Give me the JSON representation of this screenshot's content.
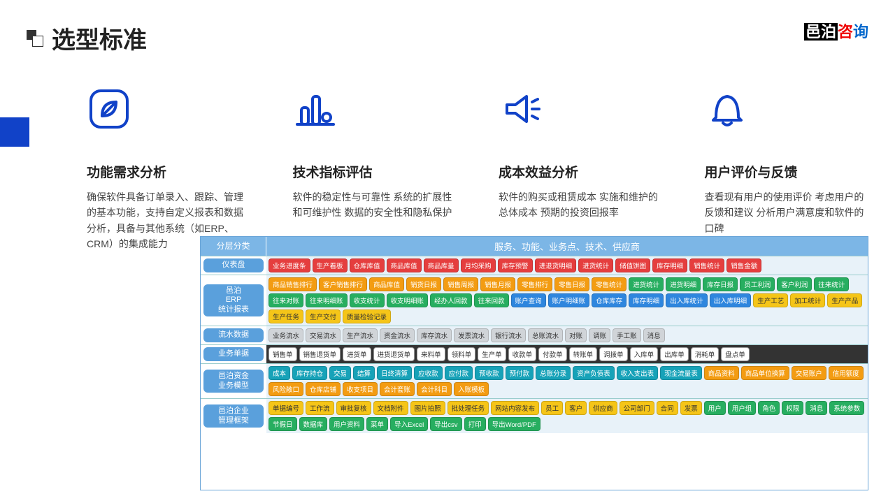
{
  "title": "选型标准",
  "logo": {
    "p1": "邑泊",
    "p2": "咨",
    "p3": "询"
  },
  "cols": [
    {
      "hd": "功能需求分析",
      "bd": "确保软件具备订单录入、跟踪、管理的基本功能，支持自定义报表和数据分析，具备与其他系统（如ERP、CRM）的集成能力"
    },
    {
      "hd": "技术指标评估",
      "bd": "软件的稳定性与可靠性\n系统的扩展性和可维护性\n数据的安全性和隐私保护"
    },
    {
      "hd": "成本效益分析",
      "bd": "软件的购买或租赁成本\n实施和维护的总体成本\n预期的投资回报率"
    },
    {
      "hd": "用户评价与反馈",
      "bd": "查看现有用户的使用评价\n考虑用户的反馈和建议\n分析用户满意度和软件的口碑"
    }
  ],
  "diagram": {
    "head_l": "分层分类",
    "head_r": "服务、功能、业务点、技术、供应商",
    "rows": [
      {
        "lab": "仪表盘",
        "cells": [
          {
            "t": "业务进度条",
            "c": "red"
          },
          {
            "t": "生产看板",
            "c": "red"
          },
          {
            "t": "仓库库值",
            "c": "red"
          },
          {
            "t": "商品库值",
            "c": "red"
          },
          {
            "t": "商品库量",
            "c": "red"
          },
          {
            "t": "月均采购",
            "c": "red"
          },
          {
            "t": "库存预警",
            "c": "red"
          },
          {
            "t": "进退货明细",
            "c": "red"
          },
          {
            "t": "进货统计",
            "c": "red"
          },
          {
            "t": "储值饼图",
            "c": "red"
          },
          {
            "t": "库存明细",
            "c": "red"
          },
          {
            "t": "销售统计",
            "c": "red"
          },
          {
            "t": "销售金额",
            "c": "red"
          }
        ]
      },
      {
        "lab": "邑泊\nERP\n统计报表",
        "cells": [
          {
            "t": "商品销售排行",
            "c": "orange"
          },
          {
            "t": "客户销售排行",
            "c": "orange"
          },
          {
            "t": "商品库值",
            "c": "orange"
          },
          {
            "t": "销货日报",
            "c": "orange"
          },
          {
            "t": "销售周报",
            "c": "orange"
          },
          {
            "t": "销售月报",
            "c": "orange"
          },
          {
            "t": "零售排行",
            "c": "orange"
          },
          {
            "t": "零售日报",
            "c": "orange"
          },
          {
            "t": "零售统计",
            "c": "orange"
          },
          {
            "t": "进货统计",
            "c": "green"
          },
          {
            "t": "进货明细",
            "c": "green"
          },
          {
            "t": "库存日报",
            "c": "green"
          },
          {
            "t": "员工利润",
            "c": "green"
          },
          {
            "t": "客户利润",
            "c": "green"
          },
          {
            "t": "往来统计",
            "c": "green"
          },
          {
            "t": "往来对账",
            "c": "green"
          },
          {
            "t": "往来明细账",
            "c": "green"
          },
          {
            "t": "收支统计",
            "c": "green"
          },
          {
            "t": "收支明细账",
            "c": "green"
          },
          {
            "t": "经办人回款",
            "c": "green"
          },
          {
            "t": "往来回款",
            "c": "green"
          },
          {
            "t": "账户查询",
            "c": "blue"
          },
          {
            "t": "账户明细账",
            "c": "blue"
          },
          {
            "t": "仓库库存",
            "c": "blue"
          },
          {
            "t": "库存明细",
            "c": "blue"
          },
          {
            "t": "出入库统计",
            "c": "blue"
          },
          {
            "t": "出入库明细",
            "c": "blue"
          },
          {
            "t": "生产工艺",
            "c": "yellow"
          },
          {
            "t": "加工统计",
            "c": "yellow"
          },
          {
            "t": "生产产品",
            "c": "yellow"
          },
          {
            "t": "生产任务",
            "c": "yellow"
          },
          {
            "t": "生产交付",
            "c": "yellow"
          },
          {
            "t": "质量检验记录",
            "c": "yellow"
          }
        ]
      },
      {
        "lab": "流水数据",
        "cells": [
          {
            "t": "业务流水",
            "c": "grey"
          },
          {
            "t": "交易流水",
            "c": "grey"
          },
          {
            "t": "生产流水",
            "c": "grey"
          },
          {
            "t": "资金流水",
            "c": "grey"
          },
          {
            "t": "库存流水",
            "c": "grey"
          },
          {
            "t": "发票流水",
            "c": "grey"
          },
          {
            "t": "银行流水",
            "c": "grey"
          },
          {
            "t": "总账流水",
            "c": "grey"
          },
          {
            "t": "对账",
            "c": "grey"
          },
          {
            "t": "调账",
            "c": "grey"
          },
          {
            "t": "手工账",
            "c": "grey"
          },
          {
            "t": "消息",
            "c": "grey"
          }
        ]
      },
      {
        "lab": "业务单据",
        "cells": [
          {
            "t": "销售单",
            "c": "white"
          },
          {
            "t": "销售退货单",
            "c": "white"
          },
          {
            "t": "进货单",
            "c": "white"
          },
          {
            "t": "进货退货单",
            "c": "white"
          },
          {
            "t": "来料单",
            "c": "white"
          },
          {
            "t": "领料单",
            "c": "white"
          },
          {
            "t": "生产单",
            "c": "white"
          },
          {
            "t": "收款单",
            "c": "white"
          },
          {
            "t": "付款单",
            "c": "white"
          },
          {
            "t": "转账单",
            "c": "white"
          },
          {
            "t": "调拨单",
            "c": "white"
          },
          {
            "t": "入库单",
            "c": "white"
          },
          {
            "t": "出库单",
            "c": "white"
          },
          {
            "t": "消耗单",
            "c": "white"
          },
          {
            "t": "盘点单",
            "c": "white"
          }
        ]
      },
      {
        "lab": "邑泊资金\n业务模型",
        "cells": [
          {
            "t": "成本",
            "c": "cyan"
          },
          {
            "t": "库存持仓",
            "c": "cyan"
          },
          {
            "t": "交易",
            "c": "cyan"
          },
          {
            "t": "结算",
            "c": "cyan"
          },
          {
            "t": "日终清算",
            "c": "cyan"
          },
          {
            "t": "应收款",
            "c": "cyan"
          },
          {
            "t": "应付款",
            "c": "cyan"
          },
          {
            "t": "预收款",
            "c": "cyan"
          },
          {
            "t": "预付款",
            "c": "cyan"
          },
          {
            "t": "总账分录",
            "c": "cyan"
          },
          {
            "t": "资产负债表",
            "c": "cyan"
          },
          {
            "t": "收入支出表",
            "c": "cyan"
          },
          {
            "t": "现金流量表",
            "c": "cyan"
          },
          {
            "t": "商品资料",
            "c": "orange"
          },
          {
            "t": "商品单位换算",
            "c": "orange"
          },
          {
            "t": "交易账户",
            "c": "orange"
          },
          {
            "t": "信用额度",
            "c": "orange"
          },
          {
            "t": "风险敞口",
            "c": "orange"
          },
          {
            "t": "仓库店铺",
            "c": "orange"
          },
          {
            "t": "收支项目",
            "c": "orange"
          },
          {
            "t": "会计套账",
            "c": "orange"
          },
          {
            "t": "会计科目",
            "c": "orange"
          },
          {
            "t": "入账模板",
            "c": "orange"
          }
        ]
      },
      {
        "lab": "邑泊企业\n管理框架",
        "cells": [
          {
            "t": "单据编号",
            "c": "yellow"
          },
          {
            "t": "工作流",
            "c": "yellow"
          },
          {
            "t": "审批复核",
            "c": "yellow"
          },
          {
            "t": "文档附件",
            "c": "yellow"
          },
          {
            "t": "图片拍照",
            "c": "yellow"
          },
          {
            "t": "批处理任务",
            "c": "yellow"
          },
          {
            "t": "网站内容发布",
            "c": "yellow"
          },
          {
            "t": "员工",
            "c": "yellow"
          },
          {
            "t": "客户",
            "c": "yellow"
          },
          {
            "t": "供应商",
            "c": "yellow"
          },
          {
            "t": "公司部门",
            "c": "yellow"
          },
          {
            "t": "合同",
            "c": "yellow"
          },
          {
            "t": "发票",
            "c": "yellow"
          },
          {
            "t": "用户",
            "c": "green"
          },
          {
            "t": "用户组",
            "c": "green"
          },
          {
            "t": "角色",
            "c": "green"
          },
          {
            "t": "权限",
            "c": "green"
          },
          {
            "t": "消息",
            "c": "green"
          },
          {
            "t": "系统参数",
            "c": "green"
          },
          {
            "t": "节假日",
            "c": "green"
          },
          {
            "t": "数据库",
            "c": "green"
          },
          {
            "t": "用户资料",
            "c": "green"
          },
          {
            "t": "菜单",
            "c": "green"
          },
          {
            "t": "导入Excel",
            "c": "green"
          },
          {
            "t": "导出csv",
            "c": "green"
          },
          {
            "t": "打印",
            "c": "green"
          },
          {
            "t": "导出Word/PDF",
            "c": "green"
          }
        ]
      }
    ]
  }
}
